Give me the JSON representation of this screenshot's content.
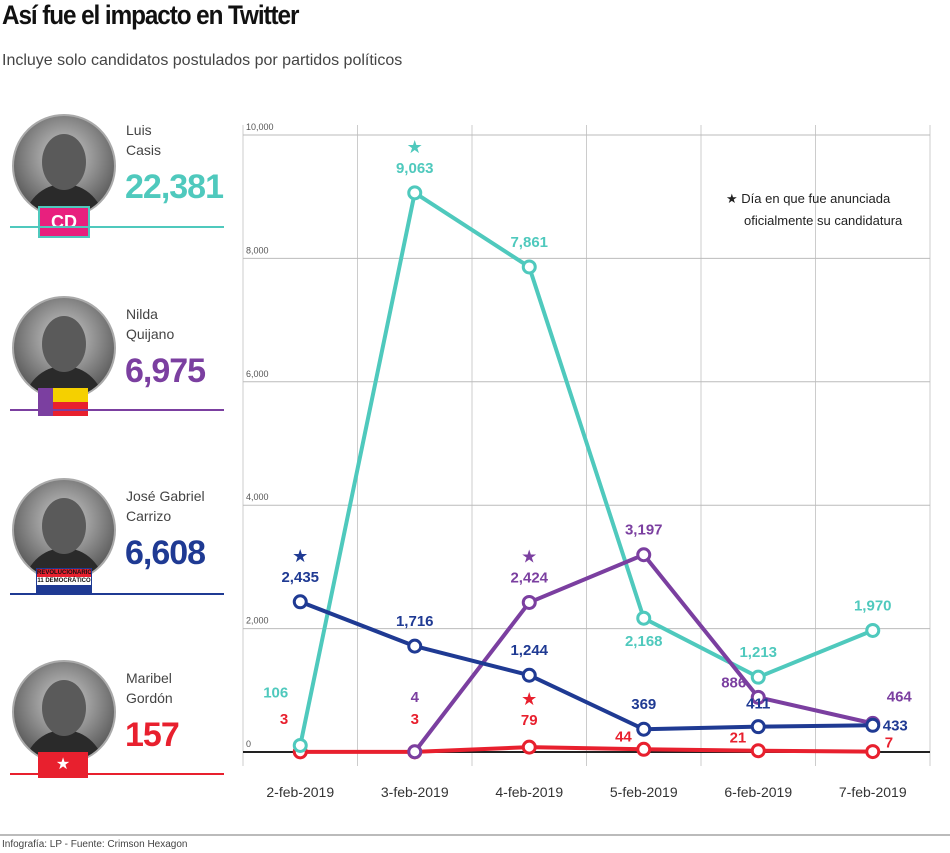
{
  "header": {
    "title": "Así fue el impacto en Twitter",
    "subtitle": "Incluye solo candidatos postulados por partidos políticos"
  },
  "candidates": [
    {
      "first": "Luis",
      "last": "Casis",
      "total": "22,381",
      "color": "#4fc9bd",
      "party": "CD"
    },
    {
      "first": "Nilda",
      "last": "Quijano",
      "total": "6,975",
      "color": "#7b3fa0"
    },
    {
      "first": "José Gabriel",
      "last": "Carrizo",
      "total": "6,608",
      "color": "#1f3a93",
      "party": "REVOLUCIONARIO 11 DEMOCRÁTICO"
    },
    {
      "first": "Maribel",
      "last": "Gordón",
      "total": "157",
      "color": "#e8202e"
    }
  ],
  "legend": {
    "star": "★",
    "text1": "Día en que fue anunciada",
    "text2": "oficialmente su candidatura"
  },
  "footer": "Infografía: LP - Fuente: Crimson Hexagon",
  "chart_data": {
    "type": "line",
    "categories": [
      "2-feb-2019",
      "3-feb-2019",
      "4-feb-2019",
      "5-feb-2019",
      "6-feb-2019",
      "7-feb-2019"
    ],
    "ylim": [
      0,
      10000
    ],
    "yticks": [
      "0",
      "2,000",
      "4,000",
      "6,000",
      "8,000",
      "10,000"
    ],
    "grid": true,
    "series": [
      {
        "name": "Luis Casis",
        "color": "#4fc9bd",
        "values": [
          106,
          9063,
          7861,
          2168,
          1213,
          1970
        ],
        "labels": [
          "106",
          "9,063",
          "7,861",
          "2,168",
          "1,213",
          "1,970"
        ],
        "star_index": 1
      },
      {
        "name": "Nilda Quijano",
        "color": "#7b3fa0",
        "values": [
          null,
          4,
          2424,
          3197,
          886,
          464
        ],
        "labels": [
          "",
          "4",
          "2,424",
          "3,197",
          "886",
          "464"
        ],
        "star_index": 2
      },
      {
        "name": "José Gabriel Carrizo",
        "color": "#1f3a93",
        "values": [
          2435,
          1716,
          1244,
          369,
          411,
          433
        ],
        "labels": [
          "2,435",
          "1,716",
          "1,244",
          "369",
          "411",
          "433"
        ],
        "star_index": 0
      },
      {
        "name": "Maribel Gordón",
        "color": "#e8202e",
        "values": [
          3,
          3,
          79,
          44,
          21,
          7
        ],
        "labels": [
          "3",
          "3",
          "79",
          "44",
          "21",
          "7"
        ],
        "star_index": 2
      }
    ]
  }
}
